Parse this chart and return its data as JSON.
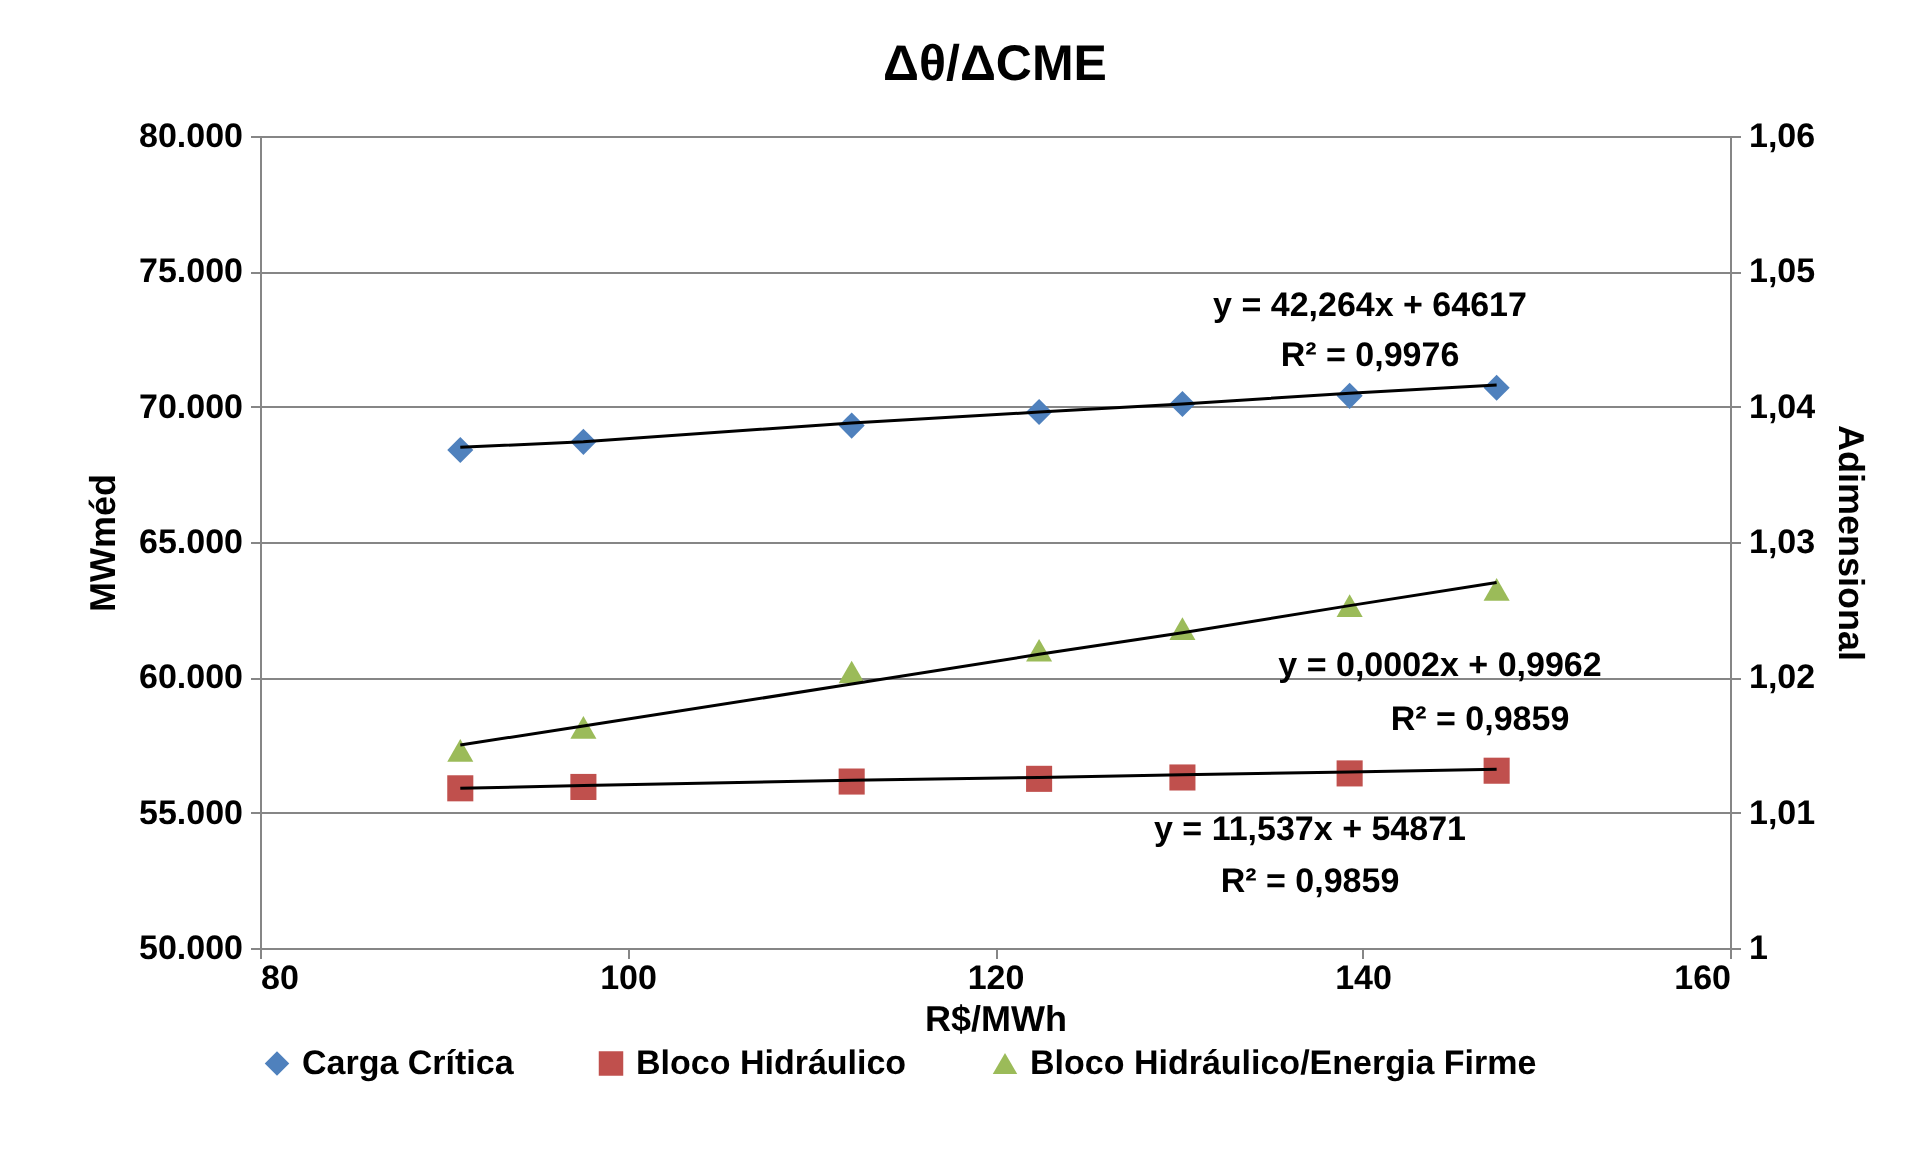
{
  "chart_data": {
    "type": "scatter",
    "title": "Δθ/ΔCME",
    "xlabel": "R$/MWh",
    "ylabel": "MWméd",
    "y2label": "Adimensional",
    "xlim": [
      80,
      160
    ],
    "xticks": [
      80,
      100,
      120,
      140,
      160
    ],
    "ylim": [
      50000,
      80000
    ],
    "yticks": [
      {
        "value": 50000,
        "label": "50.000"
      },
      {
        "value": 55000,
        "label": "55.000"
      },
      {
        "value": 60000,
        "label": "60.000"
      },
      {
        "value": 65000,
        "label": "65.000"
      },
      {
        "value": 70000,
        "label": "70.000"
      },
      {
        "value": 75000,
        "label": "75.000"
      },
      {
        "value": 80000,
        "label": "80.000"
      }
    ],
    "y2lim": [
      1,
      1.06
    ],
    "y2ticks": [
      {
        "value": 1,
        "label": "1"
      },
      {
        "value": 1.01,
        "label": "1,01"
      },
      {
        "value": 1.02,
        "label": "1,02"
      },
      {
        "value": 1.03,
        "label": "1,03"
      },
      {
        "value": 1.04,
        "label": "1,04"
      },
      {
        "value": 1.05,
        "label": "1,05"
      },
      {
        "value": 1.06,
        "label": "1,06"
      }
    ],
    "grid": "y",
    "legend": "bottom",
    "x": [
      90.9,
      97.6,
      112.2,
      122.4,
      130.2,
      139.3,
      147.3
    ],
    "series": [
      {
        "name": "Carga Crítica",
        "color": "#4f81bd",
        "marker": "diamond",
        "values": [
          68400,
          68700,
          69300,
          69800,
          70100,
          70400,
          70700
        ]
      },
      {
        "name": "Bloco Hidráulico",
        "color": "#c0504d",
        "marker": "square",
        "values": [
          55900,
          55950,
          56150,
          56250,
          56300,
          56450,
          56550
        ]
      },
      {
        "name": "Bloco Hidráulico/Energia Firme",
        "color": "#9bbb59",
        "marker": "triangle",
        "axis": "y2",
        "values": [
          1.0146,
          1.0163,
          1.0204,
          1.022,
          1.0236,
          1.0253,
          1.0265
        ]
      },
      {
        "type": "line",
        "color": "#000000",
        "values": [
          68500,
          68700,
          69400,
          69800,
          70100,
          70500,
          70800
        ]
      },
      {
        "type": "line",
        "color": "#000000",
        "axis": "y2",
        "values": [
          1.015,
          1.0164,
          1.0195,
          1.0217,
          1.0233,
          1.0253,
          1.027
        ]
      },
      {
        "type": "line",
        "color": "#000000",
        "values": [
          55900,
          56000,
          56200,
          56300,
          56400,
          56500,
          56600
        ]
      }
    ],
    "annotations": [
      "y = 42,264x + 64617",
      "R² = 0,9976",
      "y = 0,0002x + 0,9962",
      "R² = 0,9859",
      "y = 11,537x + 54871",
      "R² = 0,9859"
    ]
  }
}
